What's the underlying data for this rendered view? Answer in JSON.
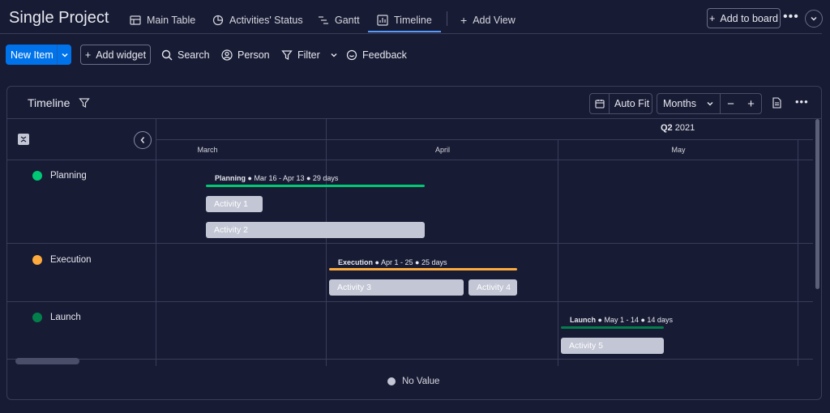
{
  "header": {
    "title": "Single Project",
    "tabs": [
      {
        "label": "Main Table",
        "icon": "table-icon"
      },
      {
        "label": "Activities' Status",
        "icon": "pie-chart-icon"
      },
      {
        "label": "Gantt",
        "icon": "gantt-icon"
      },
      {
        "label": "Timeline",
        "icon": "timeline-icon",
        "active": true
      }
    ],
    "add_view_label": "Add View",
    "add_to_board_label": "Add to board"
  },
  "toolbar": {
    "new_item_label": "New Item",
    "add_widget_label": "Add widget",
    "search_label": "Search",
    "person_label": "Person",
    "filter_label": "Filter",
    "feedback_label": "Feedback"
  },
  "timeline": {
    "title": "Timeline",
    "auto_fit_label": "Auto Fit",
    "scale_value": "Months",
    "quarter_label": "Q2",
    "year_label": "2021",
    "months": [
      "March",
      "April",
      "May"
    ],
    "groups": [
      {
        "name": "Planning",
        "color": "#00c875",
        "summary_name": "Planning",
        "summary_detail": "Mar 16 - Apr 13",
        "summary_days": "29 days",
        "items": [
          "Activity 1",
          "Activity 2"
        ]
      },
      {
        "name": "Execution",
        "color": "#fdab3d",
        "summary_name": "Execution",
        "summary_detail": "Apr 1 - 25",
        "summary_days": "25 days",
        "items": [
          "Activity 3",
          "Activity 4"
        ]
      },
      {
        "name": "Launch",
        "color": "#037f4c",
        "summary_name": "Launch",
        "summary_detail": "May 1 - 14",
        "summary_days": "14 days",
        "items": [
          "Activity 5"
        ]
      }
    ],
    "legend_label": "No Value",
    "legend_color": "#c3c6d4"
  }
}
